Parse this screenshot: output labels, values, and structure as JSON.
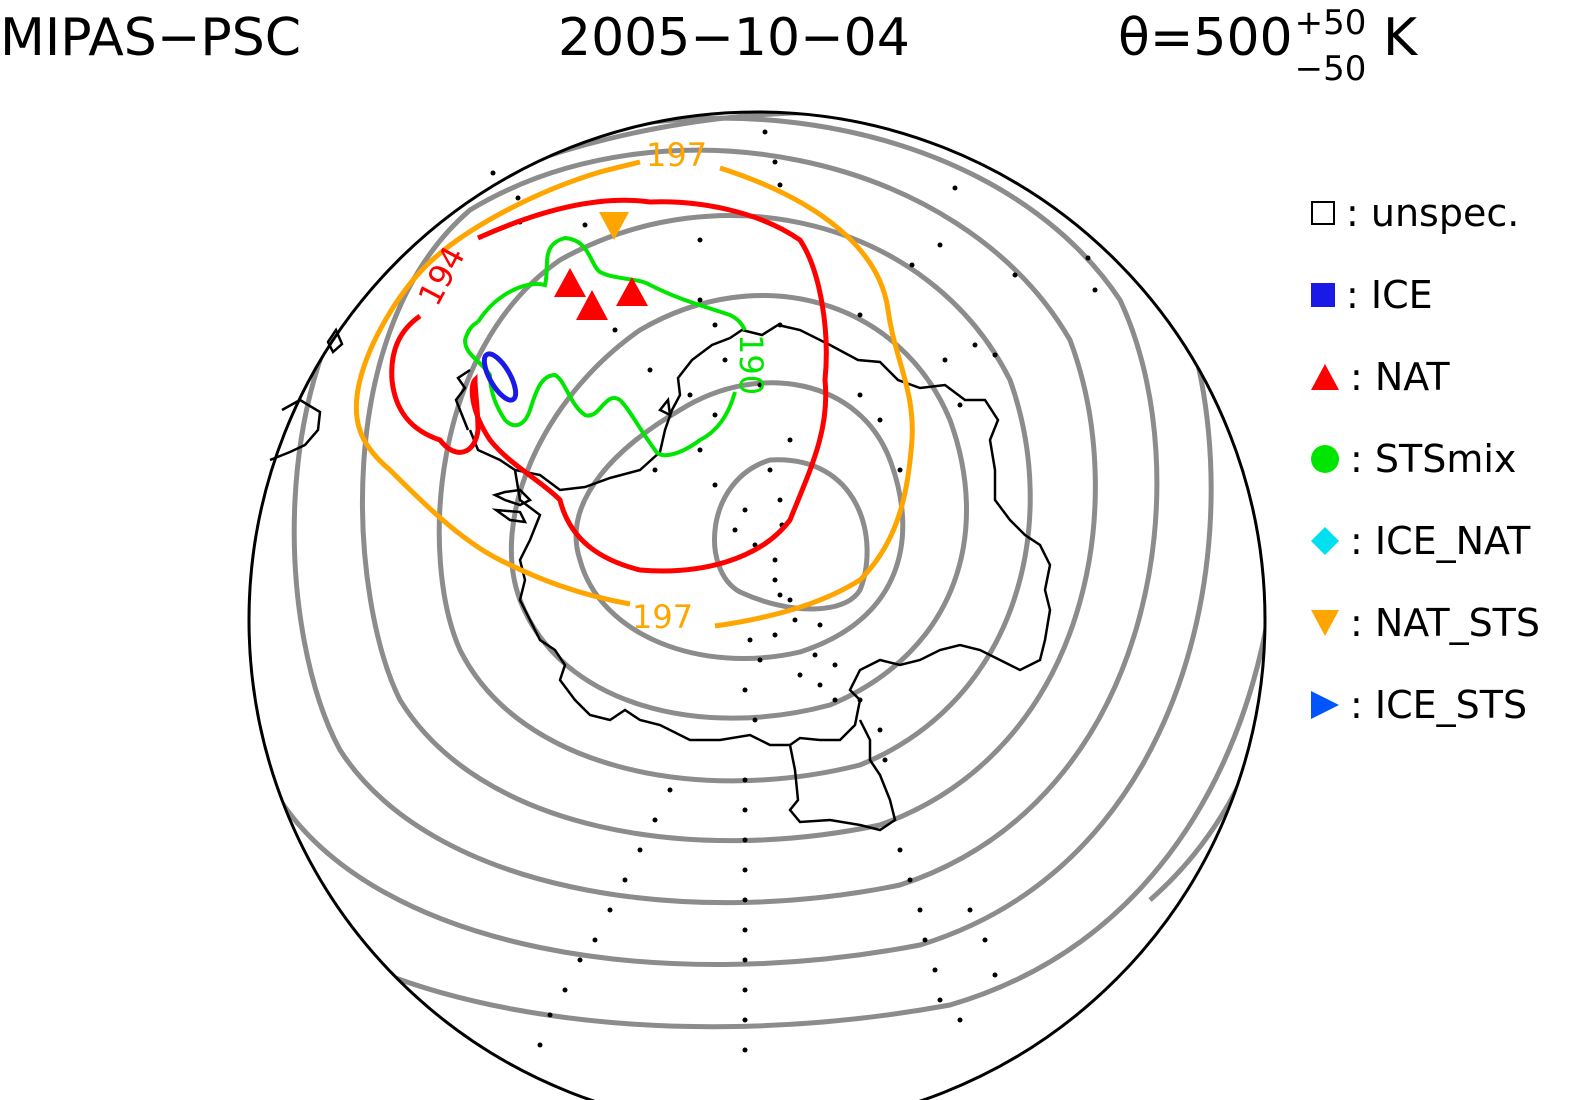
{
  "header": {
    "instrument": "MIPAS−PSC",
    "date": "2005−10−04",
    "theta_prefix": "θ=500",
    "theta_sup": "+50",
    "theta_sub": "−50",
    "theta_unit": "K"
  },
  "legend": [
    {
      "label": ": unspec.",
      "symbol": "square-open",
      "color": "#000000"
    },
    {
      "label": ": ICE",
      "symbol": "square",
      "color": "#1a1ae6"
    },
    {
      "label": ": NAT",
      "symbol": "triangle-up",
      "color": "#ff0000"
    },
    {
      "label": ": STSmix",
      "symbol": "circle",
      "color": "#00e600"
    },
    {
      "label": ": ICE_NAT",
      "symbol": "diamond",
      "color": "#00e0f0"
    },
    {
      "label": ": NAT_STS",
      "symbol": "triangle-down",
      "color": "#ffa500"
    },
    {
      "label": ": ICE_STS",
      "symbol": "triangle-right",
      "color": "#0055ff"
    }
  ],
  "contour_labels": {
    "c197_top": "197",
    "c197_bottom": "197",
    "c194": "194",
    "c190": "190"
  },
  "colors": {
    "background_contours": "#8c8c8c",
    "contour_197": "#ffa500",
    "contour_194": "#ff0000",
    "contour_190": "#00e600",
    "ice_contour": "#1a1ae6",
    "coastline": "#000000",
    "observations": "#000000"
  }
}
